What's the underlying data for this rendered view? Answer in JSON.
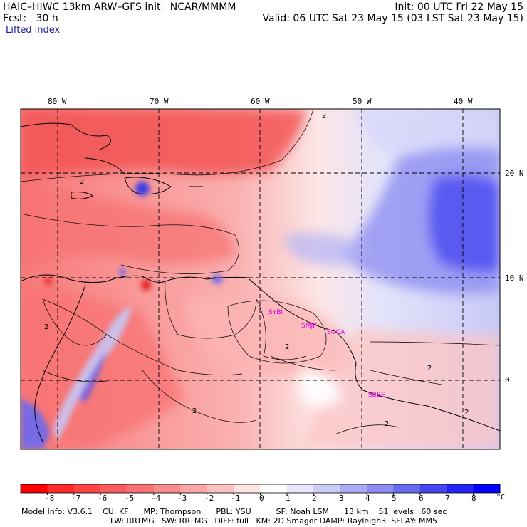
{
  "header": {
    "model_line": "HAIC–HIWC 13km ARW–GFS init   NCAR/MMMM",
    "forecast": "Fcst:   30 h",
    "init": "Init: 00 UTC Fri 22 May 15",
    "valid": "Valid: 06 UTC Sat 23 May 15 (03 LST Sat 23 May 15)",
    "field": "Lifted index"
  },
  "map": {
    "lon_labels": [
      "80 W",
      "70 W",
      "60 W",
      "50 W",
      "40 W"
    ],
    "lat_labels": [
      "20 N",
      "10 N",
      "0"
    ],
    "contour_labels": [
      "2",
      "2",
      "2",
      "2",
      "2",
      "2",
      "2",
      "2"
    ],
    "stations": [
      "SYBI",
      "SMJP",
      "SOCA",
      "SBBE"
    ]
  },
  "legend": {
    "ticks": [
      "-8",
      "-7",
      "-6",
      "-5",
      "-4",
      "-3",
      "-2",
      "-1",
      "0",
      "1",
      "2",
      "3",
      "4",
      "5",
      "6",
      "7",
      "8"
    ],
    "unit": "°C",
    "colors": [
      "#ff0000",
      "#ff2a2a",
      "#ff4444",
      "#f85c5c",
      "#f87474",
      "#f98c8c",
      "#faa6a6",
      "#fcc2c2",
      "#fde4e4",
      "#ffffff",
      "#e6e6fd",
      "#ccccf8",
      "#ababf3",
      "#8b8bf2",
      "#6a6af0",
      "#4646f0",
      "#2424f4",
      "#0000ff"
    ]
  },
  "footer": {
    "line1": "Model Info: V3.6.1    CU: KF      MP: Thompson      PBL: YSU          SF: Noah LSM      13 km    51 levels   60 sec",
    "line2": "LW: RRTMG   SW: RRTMG   DIFF: full   KM: 2D Smagor DAMP: Rayleigh3  SFLAY: MM5"
  }
}
